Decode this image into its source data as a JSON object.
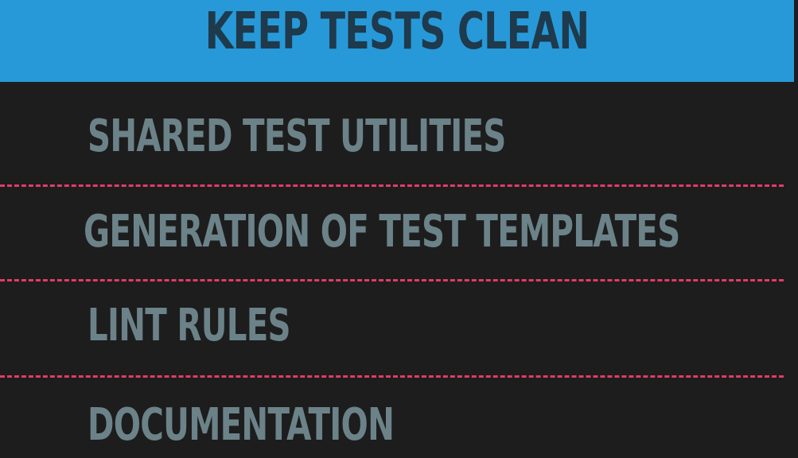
{
  "slide": {
    "title": "KEEP TESTS CLEAN",
    "items": [
      "SHARED TEST UTILITIES",
      "GENERATION OF TEST TEMPLATES",
      "LINT RULES",
      "DOCUMENTATION"
    ]
  },
  "colors": {
    "title_bar": "#2799d8",
    "title_text": "#1e3a4c",
    "background": "#1d1d1d",
    "item_text": "#6b8288",
    "divider": "#e23b6a"
  }
}
